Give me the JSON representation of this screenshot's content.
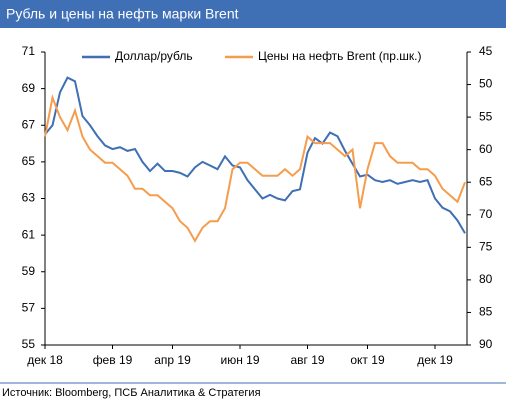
{
  "chart_data": {
    "type": "line",
    "title": "Рубль и цены на нефть марки Brent",
    "source": "Источник: Bloomberg, ПСБ Аналитика & Стратегия",
    "categories": [
      "дек 18",
      null,
      null,
      null,
      null,
      null,
      null,
      null,
      null,
      "фев 19",
      null,
      null,
      null,
      null,
      null,
      null,
      null,
      "апр 19",
      null,
      null,
      null,
      null,
      null,
      null,
      null,
      null,
      "июн 19",
      null,
      null,
      null,
      null,
      null,
      null,
      null,
      null,
      "авг 19",
      null,
      null,
      null,
      null,
      null,
      null,
      null,
      "окт 19",
      null,
      null,
      null,
      null,
      null,
      null,
      null,
      null,
      "дек 19",
      null,
      null,
      null,
      null
    ],
    "series": [
      {
        "name": "Доллар/рубль",
        "color": "#3f6fb5",
        "values": [
          66.5,
          67.0,
          68.8,
          69.6,
          69.4,
          67.5,
          67.0,
          66.4,
          65.9,
          65.7,
          65.8,
          65.6,
          65.7,
          65.0,
          64.5,
          64.9,
          64.5,
          64.5,
          64.4,
          64.2,
          64.7,
          65.0,
          64.8,
          64.6,
          65.3,
          64.8,
          64.7,
          64.0,
          63.5,
          63.0,
          63.2,
          63.0,
          62.9,
          63.4,
          63.5,
          65.5,
          66.3,
          66.0,
          66.6,
          66.4,
          65.6,
          64.9,
          64.2,
          64.3,
          64.0,
          63.9,
          64.0,
          63.8,
          63.9,
          64.0,
          63.9,
          64.0,
          63.0,
          62.5,
          62.3,
          61.8,
          61.1
        ]
      },
      {
        "name": "Цены на нефть Brent (пр.шк.)",
        "color": "#f59d4c",
        "axis": "y2",
        "values": [
          58,
          52,
          55,
          57,
          54,
          58,
          60,
          61,
          62,
          62,
          63,
          64,
          66,
          66,
          67,
          67,
          68,
          69,
          71,
          72,
          74,
          72,
          71,
          71,
          69,
          63,
          62,
          62,
          63,
          64,
          64,
          64,
          63,
          64,
          63,
          58,
          59,
          59,
          59,
          60,
          61,
          60,
          69,
          63,
          59,
          59,
          61,
          62,
          62,
          62,
          63,
          63,
          64,
          66,
          67,
          68,
          65
        ]
      }
    ],
    "ylim": [
      55,
      71
    ],
    "yticks": [
      55,
      57,
      59,
      61,
      63,
      65,
      67,
      69,
      71
    ],
    "y2lim": [
      90,
      45
    ],
    "y2ticks": [
      45,
      50,
      55,
      60,
      65,
      70,
      75,
      80,
      85,
      90
    ],
    "grid": false
  }
}
